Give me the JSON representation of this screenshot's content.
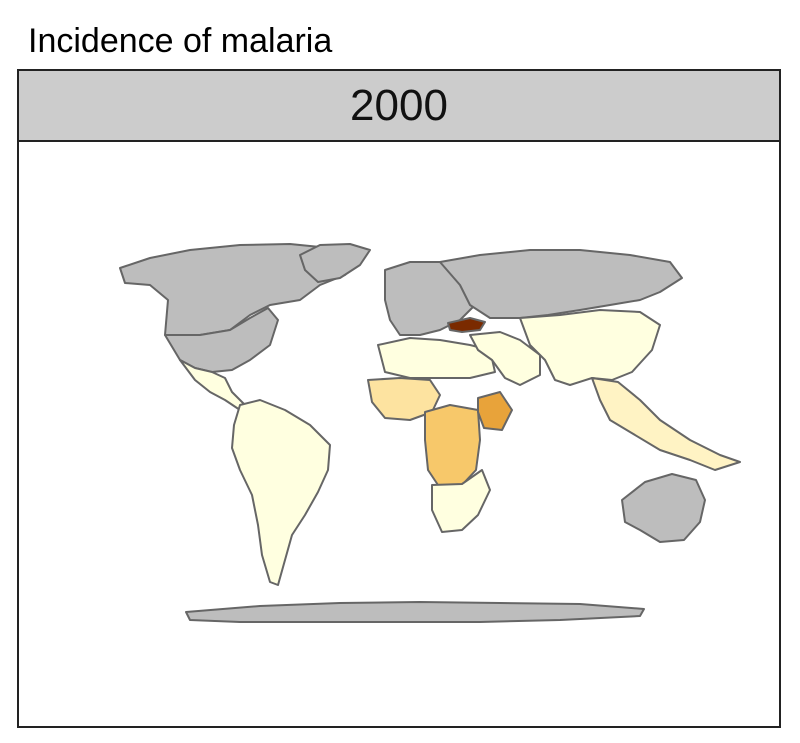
{
  "title": "Incidence of malaria",
  "facet": {
    "label": "2000"
  },
  "colors": {
    "no_data": "#bdbdbd",
    "border": "#666666",
    "scale": [
      "#ffffe0",
      "#fff3c4",
      "#fde3a0",
      "#f7c86a",
      "#e8a33a",
      "#7a2a00"
    ]
  },
  "regions": [
    {
      "name": "Canada",
      "class": "no_data"
    },
    {
      "name": "Greenland",
      "class": "no_data"
    },
    {
      "name": "United States",
      "class": "no_data"
    },
    {
      "name": "Mexico & Central America",
      "class": 0
    },
    {
      "name": "South America",
      "class": 0
    },
    {
      "name": "Europe",
      "class": "no_data"
    },
    {
      "name": "Russia",
      "class": "no_data"
    },
    {
      "name": "Turkey",
      "class": 5
    },
    {
      "name": "North Africa",
      "class": 0
    },
    {
      "name": "West Africa",
      "class": 2
    },
    {
      "name": "Central Africa",
      "class": 3
    },
    {
      "name": "Ethiopia",
      "class": 4
    },
    {
      "name": "Southern Africa",
      "class": 0
    },
    {
      "name": "Middle East",
      "class": 0
    },
    {
      "name": "Asia",
      "class": 0
    },
    {
      "name": "Southeast Asia",
      "class": 1
    },
    {
      "name": "Australia",
      "class": "no_data"
    },
    {
      "name": "Antarctica",
      "class": "no_data"
    }
  ]
}
